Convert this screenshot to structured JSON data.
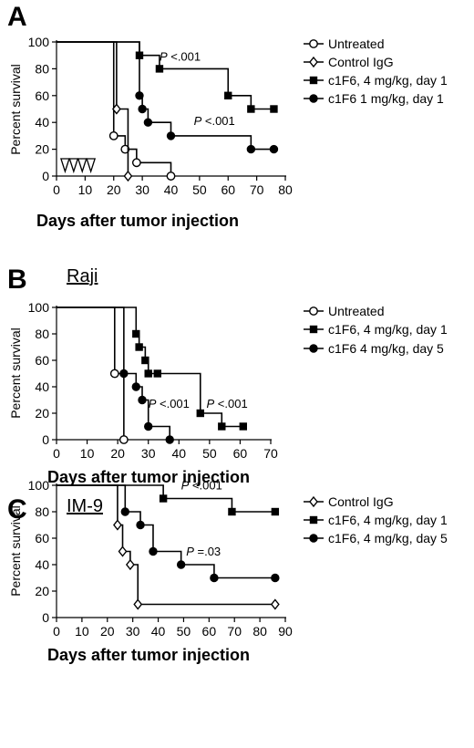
{
  "chart_data": [
    {
      "panel": "A",
      "type": "line",
      "subtype": "kaplan-meier step",
      "xlabel": "Days after tumor injection",
      "ylabel": "Percent survival",
      "xlim": [
        0,
        80
      ],
      "ylim": [
        0,
        100
      ],
      "xticks": [
        "0",
        "10",
        "20",
        "30",
        "40",
        "50",
        "60",
        "70",
        "80"
      ],
      "yticks": [
        "0",
        "20",
        "40",
        "60",
        "80",
        "100"
      ],
      "grid": false,
      "legend_position": "right",
      "treatment_markers": {
        "marker": "open triangle",
        "days": [
          3,
          6,
          9,
          12
        ]
      },
      "series": [
        {
          "name": "Untreated",
          "marker": "open-circle",
          "x": [
            0,
            20,
            24,
            28,
            40
          ],
          "y": [
            100,
            30,
            20,
            10,
            0
          ]
        },
        {
          "name": "Control IgG",
          "marker": "open-diamond",
          "x": [
            0,
            21,
            25
          ],
          "y": [
            100,
            50,
            0
          ]
        },
        {
          "name": "c1F6, 4 mg/kg, day 1",
          "marker": "filled-square",
          "x": [
            0,
            29,
            36,
            60,
            68,
            76
          ],
          "y": [
            100,
            90,
            80,
            60,
            50,
            50
          ]
        },
        {
          "name": "c1F6 1 mg/kg, day 1",
          "marker": "filled-circle",
          "x": [
            0,
            29,
            30,
            32,
            40,
            68,
            76
          ],
          "y": [
            100,
            60,
            50,
            40,
            30,
            20,
            20
          ]
        }
      ],
      "annotations": [
        {
          "italic": "P",
          "text": " <.001",
          "x": 36,
          "y": 86
        },
        {
          "italic": "P",
          "text": " <.001",
          "x": 48,
          "y": 38
        }
      ]
    },
    {
      "panel": "B",
      "cell_line": "Raji",
      "type": "line",
      "subtype": "kaplan-meier step",
      "xlabel": "Days after tumor injection",
      "ylabel": "Percent survival",
      "xlim": [
        0,
        70
      ],
      "ylim": [
        0,
        100
      ],
      "xticks": [
        "0",
        "10",
        "20",
        "30",
        "40",
        "50",
        "60",
        "70"
      ],
      "yticks": [
        "0",
        "20",
        "40",
        "60",
        "80",
        "100"
      ],
      "grid": false,
      "legend_position": "right",
      "series": [
        {
          "name": "Untreated",
          "marker": "open-circle",
          "x": [
            0,
            19,
            22
          ],
          "y": [
            100,
            50,
            0
          ]
        },
        {
          "name": "c1F6, 4 mg/kg, day 1",
          "marker": "filled-square",
          "x": [
            0,
            26,
            27,
            29,
            30,
            33,
            47,
            54,
            61
          ],
          "y": [
            100,
            80,
            70,
            60,
            50,
            50,
            20,
            10,
            10
          ]
        },
        {
          "name": "c1F6 4 mg/kg, day 5",
          "marker": "filled-circle",
          "x": [
            0,
            22,
            26,
            28,
            30,
            37
          ],
          "y": [
            100,
            50,
            40,
            30,
            10,
            0
          ]
        }
      ],
      "annotations": [
        {
          "italic": "P",
          "text": " <.001",
          "x": 30,
          "y": 24
        },
        {
          "italic": "P",
          "text": " <.001",
          "x": 49,
          "y": 24
        }
      ]
    },
    {
      "panel": "C",
      "cell_line": "IM-9",
      "type": "line",
      "subtype": "kaplan-meier step",
      "xlabel": "Days after tumor injection",
      "ylabel": "Percent survival",
      "xlim": [
        0,
        90
      ],
      "ylim": [
        0,
        100
      ],
      "xticks": [
        "0",
        "10",
        "20",
        "30",
        "40",
        "50",
        "60",
        "70",
        "80",
        "90"
      ],
      "yticks": [
        "0",
        "20",
        "40",
        "60",
        "80",
        "100"
      ],
      "grid": false,
      "legend_position": "right",
      "series": [
        {
          "name": "Control IgG",
          "marker": "open-diamond",
          "x": [
            0,
            24,
            26,
            29,
            32,
            86
          ],
          "y": [
            100,
            70,
            50,
            40,
            10,
            10
          ]
        },
        {
          "name": "c1F6, 4 mg/kg, day 1",
          "marker": "filled-square",
          "x": [
            0,
            42,
            69,
            86
          ],
          "y": [
            100,
            90,
            80,
            80
          ]
        },
        {
          "name": "c1F6, 4 mg/kg, day 5",
          "marker": "filled-circle",
          "x": [
            0,
            27,
            33,
            38,
            49,
            62,
            86
          ],
          "y": [
            100,
            80,
            70,
            50,
            40,
            30,
            30
          ]
        }
      ],
      "annotations": [
        {
          "italic": "P",
          "text": " <.001",
          "x": 49,
          "y": 97
        },
        {
          "italic": "P",
          "text": " =.03",
          "x": 51,
          "y": 47
        }
      ]
    }
  ]
}
